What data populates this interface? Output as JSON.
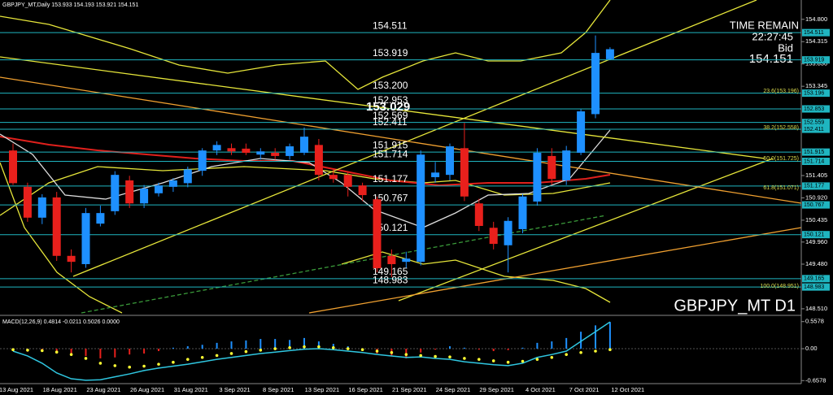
{
  "chart_data": [
    {
      "type": "candlestick",
      "title": "GBPJPY_MT D1",
      "header": "GBPJPY_MT,Daily  153.933 154.193 153.921 154.151",
      "info": {
        "time_label": "TIME REMAIN",
        "time": "22:27:45",
        "bid_label": "Bid",
        "bid": "154.151"
      },
      "up_color": "#1e90ff",
      "down_color": "#e8201c",
      "level_color": "#1fb5c0",
      "categories": [
        "13 Aug 2021",
        null,
        null,
        "18 Aug 2021",
        null,
        null,
        "23 Aug 2021",
        null,
        null,
        "26 Aug 2021",
        null,
        null,
        "31 Aug 2021",
        null,
        null,
        "3 Sep 2021",
        null,
        null,
        "8 Sep 2021",
        null,
        null,
        "13 Sep 2021",
        null,
        null,
        "16 Sep 2021",
        null,
        null,
        "21 Sep 2021",
        null,
        null,
        "24 Sep 2021",
        null,
        null,
        "29 Sep 2021",
        null,
        null,
        "4 Oct 2021",
        null,
        null,
        "7 Oct 2021",
        null,
        null,
        "12 Oct 2021"
      ],
      "ohlc": [
        [
          151.95,
          152.1,
          151.2,
          151.24
        ],
        [
          151.16,
          151.25,
          150.4,
          150.49
        ],
        [
          150.49,
          151.0,
          150.35,
          150.93
        ],
        [
          150.93,
          151.05,
          149.55,
          149.66
        ],
        [
          149.66,
          149.8,
          149.3,
          149.53
        ],
        [
          149.48,
          150.7,
          149.4,
          150.59
        ],
        [
          150.36,
          150.75,
          150.3,
          150.59
        ],
        [
          150.63,
          151.5,
          150.55,
          151.42
        ],
        [
          151.3,
          151.4,
          150.7,
          150.8
        ],
        [
          150.8,
          151.2,
          150.7,
          151.12
        ],
        [
          151.02,
          151.25,
          150.95,
          151.19
        ],
        [
          151.16,
          151.35,
          151.05,
          151.3
        ],
        [
          151.24,
          151.6,
          151.15,
          151.54
        ],
        [
          151.51,
          152.0,
          151.4,
          151.95
        ],
        [
          151.95,
          152.15,
          151.85,
          152.07
        ],
        [
          152.0,
          152.1,
          151.85,
          151.93
        ],
        [
          151.99,
          152.1,
          151.85,
          151.9
        ],
        [
          151.86,
          152.0,
          151.75,
          151.93
        ],
        [
          151.9,
          152.0,
          151.75,
          151.83
        ],
        [
          151.83,
          152.1,
          151.75,
          152.04
        ],
        [
          151.9,
          152.45,
          151.85,
          152.25
        ],
        [
          152.07,
          152.2,
          151.3,
          151.42
        ],
        [
          151.42,
          151.55,
          151.25,
          151.33
        ],
        [
          151.42,
          151.5,
          150.95,
          151.16
        ],
        [
          151.19,
          151.25,
          150.85,
          150.98
        ],
        [
          150.89,
          150.95,
          149.3,
          149.39
        ],
        [
          149.66,
          149.8,
          149.2,
          149.48
        ],
        [
          149.53,
          149.75,
          149.4,
          149.6
        ],
        [
          149.53,
          151.95,
          149.45,
          151.86
        ],
        [
          151.37,
          151.7,
          151.25,
          151.47
        ],
        [
          151.42,
          152.1,
          151.3,
          152.04
        ],
        [
          152.0,
          152.55,
          150.85,
          150.95
        ],
        [
          150.8,
          150.9,
          150.2,
          150.31
        ],
        [
          150.27,
          150.4,
          149.8,
          149.92
        ],
        [
          149.89,
          150.5,
          149.3,
          150.42
        ],
        [
          150.24,
          151.0,
          150.15,
          150.95
        ],
        [
          150.84,
          152.0,
          150.75,
          151.9
        ],
        [
          151.83,
          152.0,
          151.2,
          151.33
        ],
        [
          151.3,
          152.05,
          151.2,
          151.95
        ],
        [
          151.9,
          152.85,
          151.85,
          152.8
        ],
        [
          152.74,
          154.45,
          152.65,
          154.07
        ],
        [
          153.933,
          154.193,
          153.921,
          154.151
        ],
        null
      ],
      "ylim": [
        148.42,
        155.22
      ],
      "yticks": [
        {
          "value": 154.8,
          "label": "154.800"
        },
        {
          "value": 154.315,
          "label": "154.315"
        },
        {
          "value": 153.83,
          "label": "153.830"
        },
        {
          "value": 153.345,
          "label": "153.345"
        },
        {
          "value": 151.405,
          "label": "151.405"
        },
        {
          "value": 150.92,
          "label": "150.920"
        },
        {
          "value": 150.435,
          "label": "150.435"
        },
        {
          "value": 149.96,
          "label": "149.960"
        },
        {
          "value": 149.48,
          "label": "149.480"
        },
        {
          "value": 148.51,
          "label": "148.510"
        }
      ],
      "levels": [
        154.511,
        153.919,
        153.196,
        152.853,
        152.559,
        152.411,
        151.915,
        151.714,
        151.177,
        150.767,
        150.121,
        149.165,
        148.983
      ],
      "extra_labels": [
        "153.200",
        "152.953",
        "153.029",
        "152.569"
      ],
      "fib_labels": [
        "23.6(153.196)",
        "38.2(152.558)",
        "50.0(151.725)",
        "61.8(151.071)",
        "100.0(148.951)"
      ]
    },
    {
      "type": "macd",
      "title": "MACD(12,26,9) 0.4814 -0.0211 0.5026 0.0000",
      "up_color": "#1e90ff",
      "down_color": "#e8201c",
      "line_color": "#2fc6e0",
      "signal_color": "#ffff33",
      "histogram": [
        -0.05,
        -0.06,
        -0.05,
        -0.1,
        -0.12,
        -0.15,
        -0.2,
        -0.18,
        -0.12,
        -0.1,
        -0.05,
        0.02,
        0.05,
        0.08,
        0.12,
        0.15,
        0.17,
        0.2,
        0.2,
        0.18,
        0.22,
        0.15,
        0.1,
        0.05,
        0.0,
        -0.1,
        -0.15,
        -0.2,
        -0.08,
        -0.02,
        0.05,
        0.02,
        -0.02,
        -0.05,
        -0.03,
        0.02,
        0.12,
        0.15,
        0.22,
        0.35,
        0.48,
        0.55,
        null
      ],
      "line": [
        -0.05,
        -0.15,
        -0.3,
        -0.5,
        -0.62,
        -0.65,
        -0.64,
        -0.58,
        -0.52,
        -0.45,
        -0.4,
        -0.36,
        -0.32,
        -0.27,
        -0.22,
        -0.18,
        -0.14,
        -0.1,
        -0.07,
        -0.04,
        -0.01,
        0.0,
        -0.02,
        -0.05,
        -0.08,
        -0.12,
        -0.15,
        -0.18,
        -0.17,
        -0.2,
        -0.22,
        -0.27,
        -0.3,
        -0.33,
        -0.35,
        -0.3,
        -0.18,
        -0.12,
        -0.05,
        0.15,
        0.35,
        0.55,
        null
      ],
      "signal": [
        -0.02,
        -0.03,
        -0.04,
        -0.07,
        -0.12,
        -0.2,
        -0.3,
        -0.35,
        -0.38,
        -0.36,
        -0.32,
        -0.28,
        -0.22,
        -0.18,
        -0.14,
        -0.1,
        -0.06,
        -0.03,
        0.0,
        0.02,
        0.04,
        0.04,
        0.02,
        0.0,
        -0.02,
        -0.05,
        -0.08,
        -0.12,
        -0.14,
        -0.16,
        -0.17,
        -0.2,
        -0.22,
        -0.25,
        -0.28,
        -0.26,
        -0.22,
        -0.18,
        -0.12,
        -0.08,
        -0.05,
        -0.02,
        null
      ],
      "ylim": [
        -0.72,
        0.62
      ],
      "yticks": [
        0.5578,
        {
          "value": 0,
          "label": "0.00"
        },
        -0.6578
      ]
    }
  ]
}
